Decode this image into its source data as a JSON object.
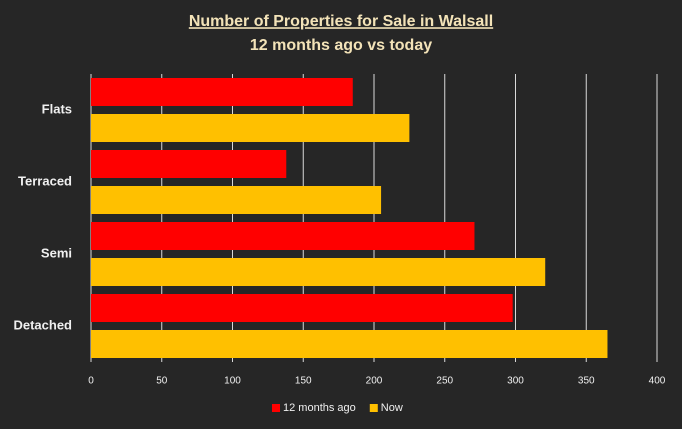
{
  "chart_data": {
    "type": "bar",
    "orientation": "horizontal",
    "title": "Number of Properties for Sale in Walsall",
    "subtitle": "12 months ago vs today",
    "categories": [
      "Flats",
      "Terraced",
      "Semi",
      "Detached"
    ],
    "series": [
      {
        "name": "12 months ago",
        "color": "#ff0000",
        "values": [
          185,
          138,
          271,
          298
        ]
      },
      {
        "name": "Now",
        "color": "#ffc000",
        "values": [
          225,
          205,
          321,
          365
        ]
      }
    ],
    "xlim": [
      0,
      400
    ],
    "xticks": [
      0,
      50,
      100,
      150,
      200,
      250,
      300,
      350,
      400
    ],
    "grid": true,
    "legend": "bottom"
  }
}
